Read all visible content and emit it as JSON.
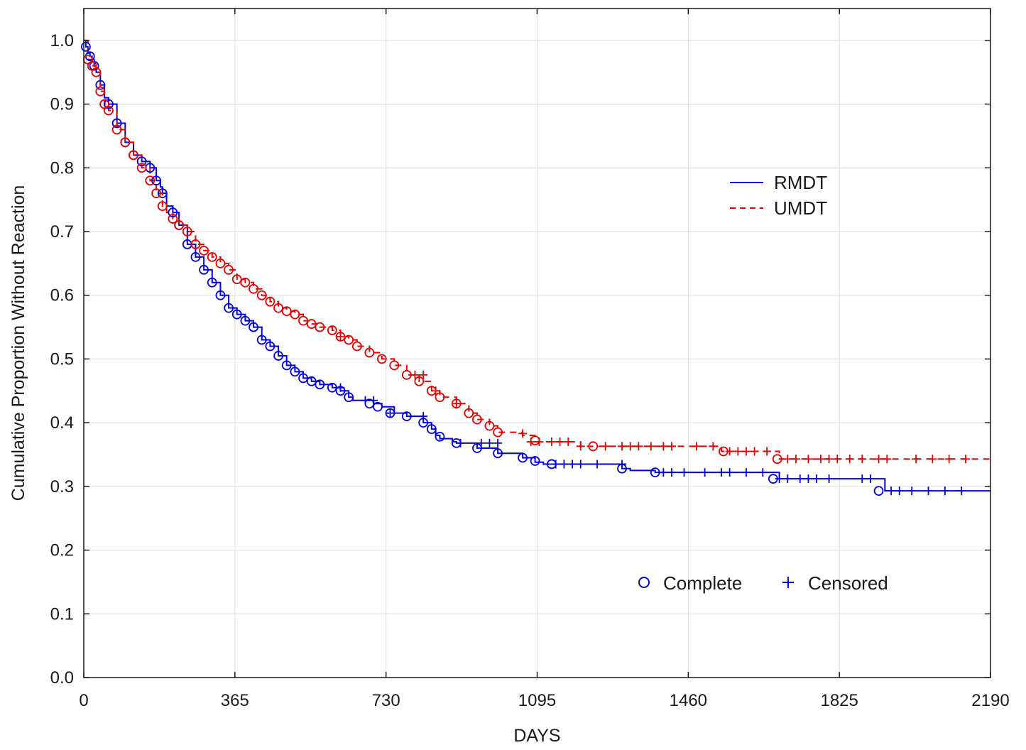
{
  "chart_data": {
    "type": "line",
    "title": "",
    "xlabel": "DAYS",
    "ylabel": "Cumulative Proportion Without Reaction",
    "xlim": [
      0,
      2190
    ],
    "ylim": [
      0,
      1.05
    ],
    "x_ticks": [
      0,
      365,
      730,
      1095,
      1460,
      1825,
      2190
    ],
    "y_ticks": [
      "0.0",
      "0.1",
      "0.2",
      "0.3",
      "0.4",
      "0.5",
      "0.6",
      "0.7",
      "0.8",
      "0.9",
      "1.0"
    ],
    "grid": true,
    "legend_position": "upper-right",
    "marker_legend_position": "lower-right",
    "marker_legend": [
      {
        "symbol": "circle",
        "label": "Complete"
      },
      {
        "symbol": "plus",
        "label": "Censored"
      }
    ],
    "series": [
      {
        "name": "RMDT",
        "color": "#0000e6",
        "line_style": "solid",
        "x": [
          0,
          5,
          10,
          15,
          20,
          25,
          30,
          40,
          50,
          60,
          80,
          100,
          120,
          140,
          160,
          175,
          185,
          190,
          200,
          215,
          230,
          250,
          270,
          290,
          310,
          330,
          350,
          370,
          390,
          410,
          430,
          450,
          470,
          490,
          510,
          530,
          550,
          570,
          600,
          620,
          640,
          650,
          680,
          700,
          720,
          750,
          780,
          820,
          840,
          850,
          860,
          890,
          900,
          920,
          950,
          1000,
          1060,
          1090,
          1110,
          1130,
          1160,
          1200,
          1300,
          1320,
          1380,
          1480,
          1660,
          1680,
          1920,
          1935,
          2000,
          2190
        ],
        "y": [
          1.0,
          0.99,
          0.98,
          0.975,
          0.97,
          0.96,
          0.95,
          0.93,
          0.91,
          0.9,
          0.87,
          0.84,
          0.82,
          0.81,
          0.8,
          0.78,
          0.77,
          0.76,
          0.74,
          0.73,
          0.71,
          0.68,
          0.66,
          0.64,
          0.62,
          0.6,
          0.58,
          0.57,
          0.56,
          0.55,
          0.53,
          0.52,
          0.505,
          0.49,
          0.48,
          0.47,
          0.465,
          0.46,
          0.455,
          0.45,
          0.44,
          0.435,
          0.435,
          0.43,
          0.425,
          0.415,
          0.41,
          0.4,
          0.39,
          0.38,
          0.375,
          0.37,
          0.368,
          0.368,
          0.36,
          0.352,
          0.345,
          0.338,
          0.335,
          0.335,
          0.335,
          0.335,
          0.328,
          0.325,
          0.322,
          0.322,
          0.322,
          0.312,
          0.312,
          0.293,
          0.293,
          0.293
        ],
        "complete_x": [
          5,
          15,
          25,
          40,
          60,
          80,
          100,
          120,
          140,
          160,
          175,
          190,
          215,
          230,
          250,
          270,
          290,
          310,
          330,
          350,
          370,
          390,
          410,
          430,
          450,
          470,
          490,
          510,
          530,
          550,
          570,
          600,
          620,
          640,
          690,
          710,
          740,
          780,
          820,
          840,
          860,
          900,
          950,
          1000,
          1060,
          1090,
          1130,
          1300,
          1380,
          1665,
          1920
        ],
        "complete_y": [
          0.99,
          0.975,
          0.96,
          0.93,
          0.9,
          0.87,
          0.84,
          0.82,
          0.81,
          0.8,
          0.78,
          0.76,
          0.73,
          0.71,
          0.68,
          0.66,
          0.64,
          0.62,
          0.6,
          0.58,
          0.57,
          0.56,
          0.55,
          0.53,
          0.52,
          0.505,
          0.49,
          0.48,
          0.47,
          0.465,
          0.46,
          0.455,
          0.45,
          0.44,
          0.43,
          0.425,
          0.415,
          0.41,
          0.4,
          0.39,
          0.378,
          0.368,
          0.36,
          0.352,
          0.345,
          0.34,
          0.335,
          0.328,
          0.322,
          0.312,
          0.293
        ],
        "censored_x": [
          620,
          680,
          700,
          740,
          820,
          910,
          960,
          980,
          1000,
          1140,
          1160,
          1180,
          1200,
          1240,
          1300,
          1400,
          1420,
          1450,
          1500,
          1540,
          1560,
          1600,
          1640,
          1680,
          1700,
          1730,
          1750,
          1770,
          1800,
          1880,
          1900,
          1950,
          1970,
          2000,
          2040,
          2080,
          2120
        ],
        "censored_y": [
          0.455,
          0.435,
          0.435,
          0.415,
          0.41,
          0.368,
          0.368,
          0.368,
          0.368,
          0.335,
          0.335,
          0.335,
          0.335,
          0.335,
          0.335,
          0.322,
          0.322,
          0.322,
          0.322,
          0.322,
          0.322,
          0.322,
          0.322,
          0.312,
          0.312,
          0.312,
          0.312,
          0.312,
          0.312,
          0.312,
          0.312,
          0.293,
          0.293,
          0.293,
          0.293,
          0.293,
          0.293
        ]
      },
      {
        "name": "UMDT",
        "color": "#e60000",
        "line_style": "dashed",
        "x": [
          0,
          10,
          20,
          30,
          40,
          50,
          60,
          80,
          100,
          120,
          140,
          160,
          175,
          190,
          200,
          215,
          230,
          250,
          270,
          290,
          310,
          330,
          350,
          370,
          390,
          410,
          430,
          450,
          470,
          490,
          510,
          530,
          550,
          570,
          600,
          620,
          640,
          660,
          690,
          720,
          750,
          780,
          810,
          840,
          860,
          900,
          930,
          950,
          980,
          1000,
          1060,
          1090,
          1120,
          1200,
          1250,
          1520,
          1540,
          1600,
          1670,
          1680,
          1750,
          2190
        ],
        "y": [
          1.0,
          0.97,
          0.96,
          0.95,
          0.92,
          0.9,
          0.89,
          0.86,
          0.84,
          0.82,
          0.8,
          0.78,
          0.76,
          0.74,
          0.73,
          0.72,
          0.71,
          0.7,
          0.68,
          0.67,
          0.66,
          0.65,
          0.64,
          0.625,
          0.62,
          0.61,
          0.6,
          0.59,
          0.58,
          0.575,
          0.57,
          0.56,
          0.555,
          0.55,
          0.545,
          0.535,
          0.53,
          0.52,
          0.51,
          0.5,
          0.49,
          0.475,
          0.465,
          0.45,
          0.44,
          0.43,
          0.415,
          0.405,
          0.395,
          0.385,
          0.38,
          0.37,
          0.37,
          0.363,
          0.363,
          0.363,
          0.355,
          0.355,
          0.355,
          0.343,
          0.343,
          0.343
        ],
        "complete_x": [
          10,
          20,
          30,
          40,
          50,
          60,
          80,
          100,
          120,
          140,
          160,
          175,
          190,
          215,
          230,
          250,
          270,
          290,
          310,
          330,
          350,
          370,
          390,
          410,
          430,
          450,
          470,
          490,
          510,
          530,
          550,
          570,
          600,
          620,
          640,
          660,
          690,
          720,
          750,
          780,
          810,
          840,
          860,
          900,
          930,
          950,
          980,
          1000,
          1090,
          1230,
          1545,
          1675
        ],
        "complete_y": [
          0.97,
          0.96,
          0.95,
          0.92,
          0.9,
          0.89,
          0.86,
          0.84,
          0.82,
          0.8,
          0.78,
          0.76,
          0.74,
          0.72,
          0.71,
          0.7,
          0.68,
          0.67,
          0.66,
          0.65,
          0.64,
          0.625,
          0.62,
          0.61,
          0.6,
          0.59,
          0.58,
          0.575,
          0.57,
          0.56,
          0.555,
          0.55,
          0.545,
          0.535,
          0.53,
          0.52,
          0.51,
          0.5,
          0.49,
          0.475,
          0.465,
          0.45,
          0.44,
          0.43,
          0.415,
          0.405,
          0.395,
          0.385,
          0.372,
          0.363,
          0.355,
          0.343
        ],
        "censored_x": [
          620,
          800,
          820,
          850,
          900,
          1060,
          1080,
          1100,
          1130,
          1150,
          1170,
          1200,
          1260,
          1300,
          1320,
          1340,
          1370,
          1400,
          1420,
          1480,
          1520,
          1560,
          1580,
          1600,
          1620,
          1650,
          1700,
          1720,
          1750,
          1780,
          1800,
          1820,
          1850,
          1880,
          1920,
          1940,
          2010,
          2050,
          2090,
          2130
        ],
        "censored_y": [
          0.535,
          0.475,
          0.475,
          0.45,
          0.43,
          0.383,
          0.37,
          0.37,
          0.37,
          0.37,
          0.37,
          0.363,
          0.363,
          0.363,
          0.363,
          0.363,
          0.363,
          0.363,
          0.363,
          0.363,
          0.363,
          0.355,
          0.355,
          0.355,
          0.355,
          0.355,
          0.343,
          0.343,
          0.343,
          0.343,
          0.343,
          0.343,
          0.343,
          0.343,
          0.343,
          0.343,
          0.343,
          0.343,
          0.343,
          0.343
        ]
      }
    ]
  }
}
